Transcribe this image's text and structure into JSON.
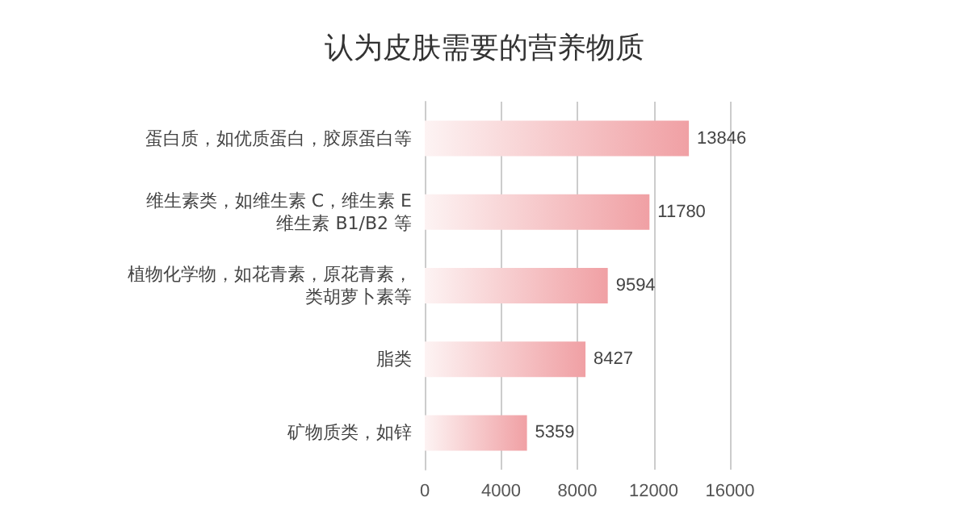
{
  "chart_data": {
    "type": "bar",
    "orientation": "horizontal",
    "title": "认为皮肤需要的营养物质",
    "categories": [
      "蛋白质，如优质蛋白，胶原蛋白等",
      "维生素类，如维生素 C，维生素 E\n维生素 B1/B2 等",
      "植物化学物，如花青素，原花青素，类胡萝卜素等",
      "脂类",
      "矿物质类，如锌"
    ],
    "values": [
      13846,
      11780,
      9594,
      8427,
      5359
    ],
    "color": "#f0a0a4",
    "xlim": [
      0,
      16000
    ],
    "xticks": [
      0,
      4000,
      8000,
      12000,
      16000
    ],
    "grid": "x",
    "data_labels": true
  }
}
